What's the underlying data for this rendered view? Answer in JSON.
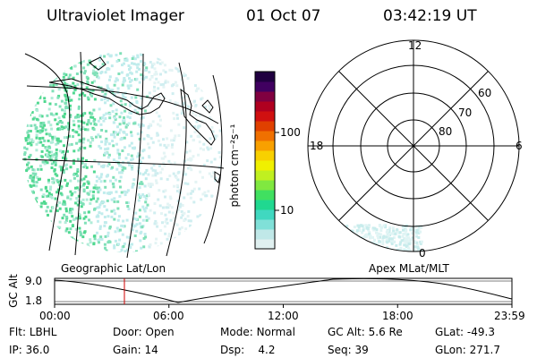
{
  "header": {
    "instrument": "Ultraviolet Imager",
    "date": "01 Oct 07",
    "time": "03:42:19 UT"
  },
  "colorbar": {
    "unit_label": "photon cm⁻²s⁻¹",
    "ticks": [
      "100",
      "10"
    ],
    "colors": [
      "#e0f0f0",
      "#c0e8e8",
      "#80e0d8",
      "#40d8c0",
      "#20d890",
      "#40e060",
      "#80e840",
      "#c0f020",
      "#f0f000",
      "#f8d000",
      "#f8a000",
      "#f07000",
      "#e04000",
      "#d01010",
      "#b00020",
      "#800040",
      "#400060",
      "#200040"
    ]
  },
  "left_map": {
    "caption": "Geographic Lat/Lon"
  },
  "right_map": {
    "caption": "Apex MLat/MLT",
    "mlt_labels": {
      "top": "12",
      "left": "18",
      "right": "6",
      "bottom": "0"
    },
    "lat_labels": [
      "60",
      "70",
      "80"
    ]
  },
  "altitude_plot": {
    "ylabel": "GC Alt",
    "yticks": [
      "9.0",
      "1.8"
    ],
    "xticks": [
      "00:00",
      "06:00",
      "12:00",
      "18:00",
      "23:59"
    ]
  },
  "info": {
    "row1": [
      {
        "k": "Flt:",
        "v": "LBHL"
      },
      {
        "k": "Door:",
        "v": "Open"
      },
      {
        "k": "Mode:",
        "v": "Normal"
      },
      {
        "k": "GC Alt:",
        "v": "5.6 Re"
      },
      {
        "k": "GLat:",
        "v": "-49.3"
      }
    ],
    "row2": [
      {
        "k": "IP:",
        "v": "36.0"
      },
      {
        "k": "Gain:",
        "v": "14"
      },
      {
        "k": "Dsp:",
        "v": "4.2"
      },
      {
        "k": "Seq:",
        "v": "39"
      },
      {
        "k": "GLon:",
        "v": "271.7"
      }
    ]
  }
}
